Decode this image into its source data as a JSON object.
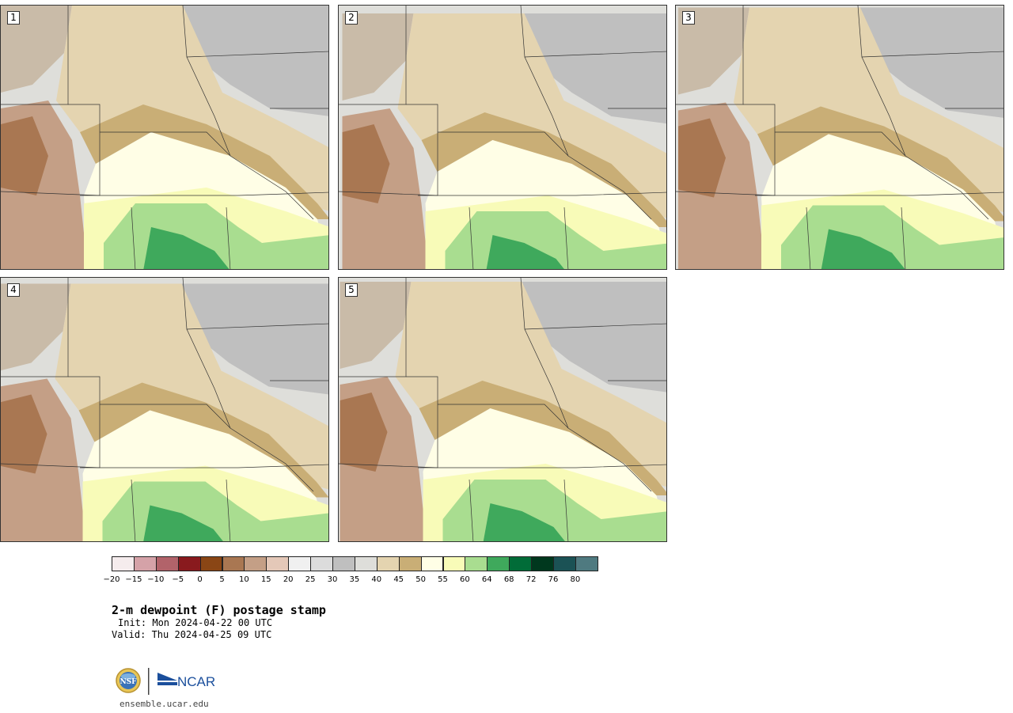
{
  "panels": [
    {
      "label": "1",
      "variant": 0
    },
    {
      "label": "2",
      "variant": 1
    },
    {
      "label": "3",
      "variant": 2
    },
    {
      "label": "4",
      "variant": 3
    },
    {
      "label": "5",
      "variant": 4
    }
  ],
  "colorbar": {
    "colors": [
      "#f5eced",
      "#d5a2a8",
      "#b2636a",
      "#891a1e",
      "#8a4615",
      "#a97752",
      "#c49f86",
      "#e4c8b8",
      "#f0f0f0",
      "#dcdcdc",
      "#bfbfbf",
      "#dededa",
      "#e4d4b0",
      "#c9ae76",
      "#fffee6",
      "#f8fbb8",
      "#a9dd90",
      "#3fa95c",
      "#016c38",
      "#00381e",
      "#1b5255",
      "#4f7a80"
    ],
    "ticks": [
      "−20",
      "−15",
      "−10",
      "−5",
      "0",
      "5",
      "10",
      "15",
      "20",
      "25",
      "30",
      "35",
      "40",
      "45",
      "50",
      "55",
      "60",
      "64",
      "68",
      "72",
      "76",
      "80"
    ]
  },
  "title": "2-m dewpoint (F) postage stamp",
  "init": "Init: Mon 2024-04-22 00 UTC",
  "valid": "Valid: Thu 2024-04-25 09 UTC",
  "logo": {
    "nsf": "NSF",
    "ncar": "NCAR"
  },
  "site": "ensemble.ucar.edu"
}
